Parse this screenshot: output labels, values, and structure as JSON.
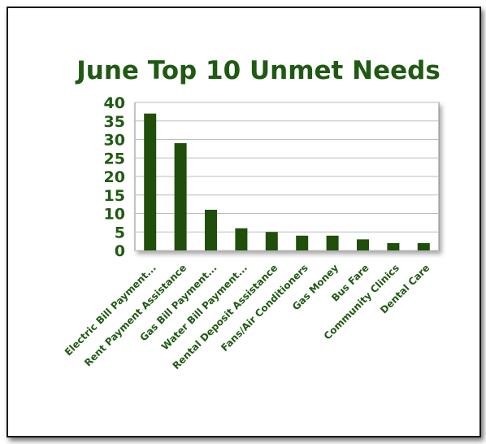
{
  "chart_data": {
    "type": "bar",
    "title": "June Top 10 Unmet Needs",
    "xlabel": "",
    "ylabel": "",
    "ylim": [
      0,
      40
    ],
    "yticks": [
      "0",
      "5",
      "10",
      "15",
      "20",
      "25",
      "30",
      "35",
      "40"
    ],
    "grid": true,
    "legend": "none",
    "categories": [
      "Electric Bill Payment...",
      "Rent Payment Assistance",
      "Gas Bill Payment...",
      "Water Bill Payment...",
      "Rental Deposit Assistance",
      "Fans/Air Conditioners",
      "Gas Money",
      "Bus Fare",
      "Community Clinics",
      "Dental Care"
    ],
    "values": [
      37,
      29,
      11,
      6,
      5,
      4,
      4,
      3,
      2,
      2
    ],
    "colors": {
      "bar": "#1f4f0a",
      "text": "#1f5a12",
      "grid": "#bdbdbd",
      "axis": "#8c8c8c"
    }
  }
}
